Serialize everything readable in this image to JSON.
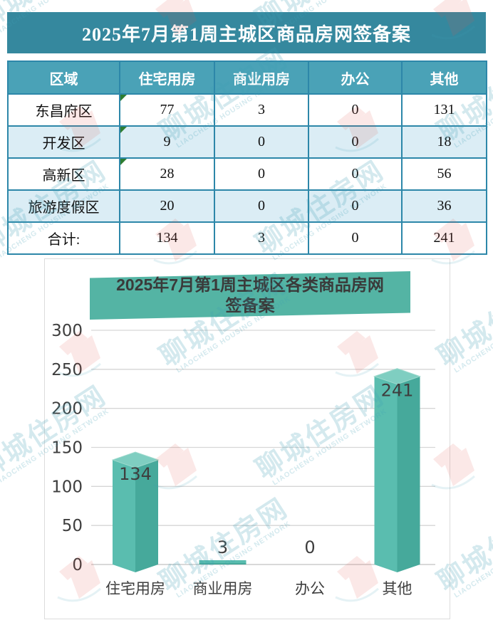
{
  "watermark": {
    "cn": "聊城住房网",
    "en": "LIAOCHENG HOUSING NETWORK"
  },
  "table": {
    "title": "2025年7月第1周主城区商品房网签备案",
    "headers": [
      "区域",
      "住宅用房",
      "商业用房",
      "办公",
      "其他"
    ],
    "rows": [
      {
        "region": "东昌府区",
        "values": [
          "77",
          "3",
          "0",
          "131"
        ]
      },
      {
        "region": "开发区",
        "values": [
          "9",
          "0",
          "0",
          "18"
        ]
      },
      {
        "region": "高新区",
        "values": [
          "28",
          "0",
          "0",
          "56"
        ]
      },
      {
        "region": "旅游度假区",
        "values": [
          "20",
          "0",
          "0",
          "36"
        ]
      },
      {
        "region": "合计:",
        "values": [
          "134",
          "3",
          "0",
          "241"
        ]
      }
    ]
  },
  "chart_data": {
    "type": "bar",
    "title": "2025年7月第1周主城区各类商品房网签备案",
    "categories": [
      "住宅用房",
      "商业用房",
      "办公",
      "其他"
    ],
    "values": [
      134,
      3,
      0,
      241
    ],
    "data_labels": [
      "134",
      "3",
      "0",
      "241"
    ],
    "ylim": [
      0,
      300
    ],
    "yticks": [
      0,
      50,
      100,
      150,
      200,
      250,
      300
    ],
    "grid": true,
    "legend": "none",
    "xlabel": "",
    "ylabel": ""
  },
  "colors": {
    "title_bar": "#35889e",
    "header_bg": "#4aa2b7",
    "row_alt": "#dbedf5",
    "table_border": "#2d87a9",
    "banner": "#54b4a4",
    "bar_left": "#5abdaf",
    "bar_right": "#46a99b",
    "bar_top": "#7fcec1",
    "bar_edge": "#9edacd",
    "grid_line": "#d6d6d6",
    "axis_line": "#c2c2c2",
    "chart_text": "#3e3e3e",
    "wm_teal": "#3e9fb5",
    "wm_red": "#e2574e"
  }
}
